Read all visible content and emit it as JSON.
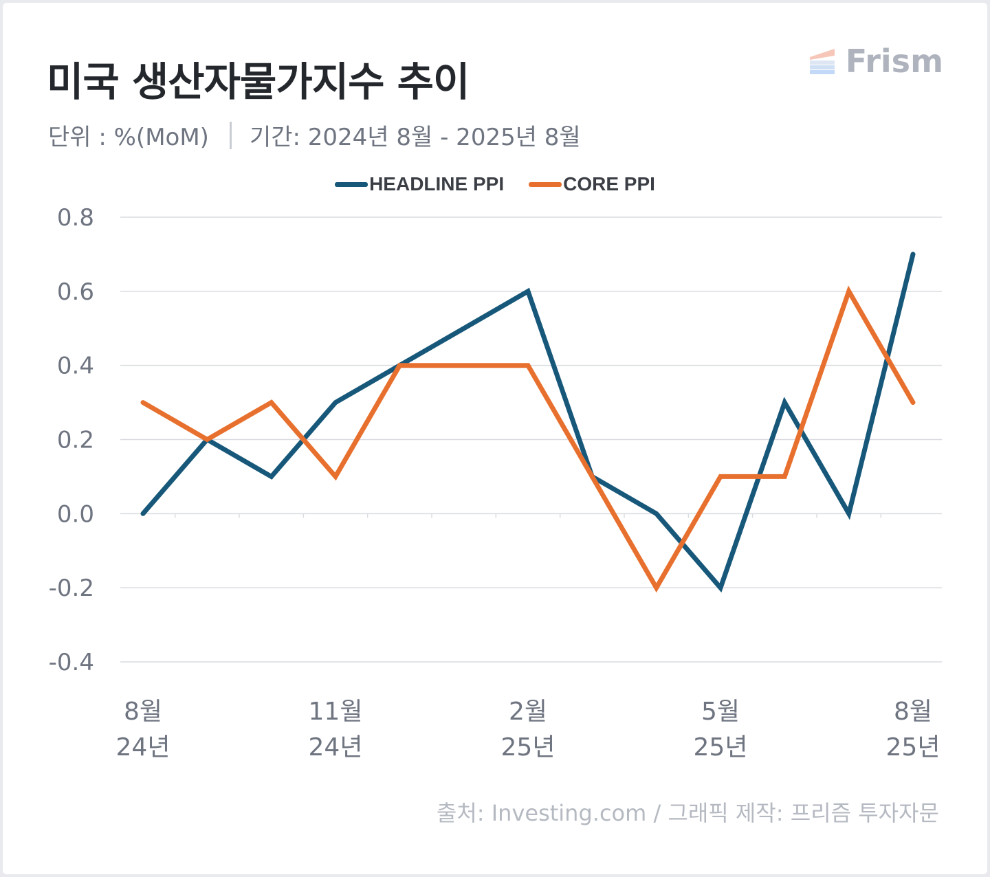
{
  "header": {
    "title": "미국 생산자물가지수 추이",
    "unit": "단위 : %(MoM)",
    "period": "기간: 2024년 8월 - 2025년 8월"
  },
  "logo": {
    "text": "Frism",
    "icon": "stacked-stripes-logo-icon"
  },
  "source": "출처: Investing.com / 그래픽 제작: 프리즘 투자자문",
  "colors": {
    "headline": "#17587a",
    "core": "#e8702e",
    "grid": "#d9dbe0",
    "tick_text": "#6e7480"
  },
  "chart_data": {
    "type": "line",
    "x": [
      "2024-08",
      "2024-09",
      "2024-10",
      "2024-11",
      "2024-12",
      "2025-01",
      "2025-02",
      "2025-03",
      "2025-04",
      "2025-05",
      "2025-06",
      "2025-07",
      "2025-08"
    ],
    "x_ticks": [
      {
        "index": 0,
        "month": "8월",
        "year": "24년"
      },
      {
        "index": 3,
        "month": "11월",
        "year": "24년"
      },
      {
        "index": 6,
        "month": "2월",
        "year": "25년"
      },
      {
        "index": 9,
        "month": "5월",
        "year": "25년"
      },
      {
        "index": 12,
        "month": "8월",
        "year": "25년"
      }
    ],
    "series": [
      {
        "name": "HEADLINE PPI",
        "color": "#17587a",
        "values": [
          0.0,
          0.2,
          0.1,
          0.3,
          0.4,
          0.5,
          0.6,
          0.1,
          0.0,
          -0.2,
          0.3,
          0.0,
          0.7
        ]
      },
      {
        "name": "CORE PPI",
        "color": "#e8702e",
        "values": [
          0.3,
          0.2,
          0.3,
          0.1,
          0.4,
          0.4,
          0.4,
          0.1,
          -0.2,
          0.1,
          0.1,
          0.6,
          0.3
        ]
      }
    ],
    "ylim": [
      -0.4,
      0.8
    ],
    "y_ticks": [
      "0.8",
      "0.6",
      "0.4",
      "0.2",
      "0.0",
      "-0.2",
      "-0.4"
    ],
    "grid": true,
    "legend": "top-center"
  }
}
